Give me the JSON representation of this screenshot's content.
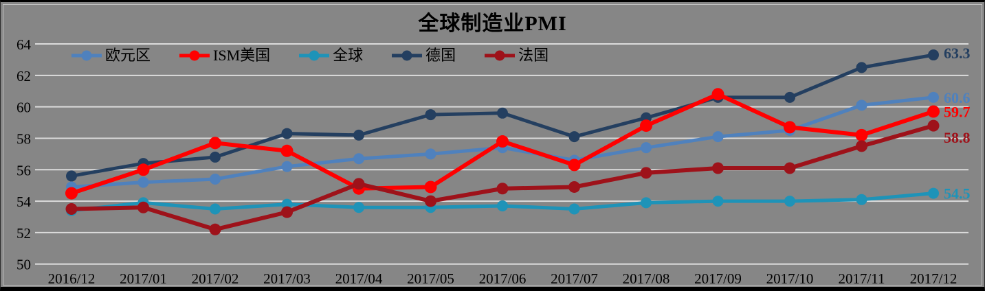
{
  "chart_data": {
    "type": "line",
    "title": "全球制造业PMI",
    "categories": [
      "2016/12",
      "2017/01",
      "2017/02",
      "2017/03",
      "2017/04",
      "2017/05",
      "2017/06",
      "2017/07",
      "2017/08",
      "2017/09",
      "2017/10",
      "2017/11",
      "2017/12"
    ],
    "series": [
      {
        "key": "eurozone",
        "name": "欧元区",
        "color": "#4F81BD",
        "z": 1,
        "line_width": 5,
        "marker_r": 8,
        "values": [
          54.9,
          55.2,
          55.4,
          56.2,
          56.7,
          57.0,
          57.4,
          56.6,
          57.4,
          58.1,
          58.5,
          60.1,
          60.6
        ],
        "end_label": "60.6"
      },
      {
        "key": "ism-us",
        "name": "ISM美国",
        "color": "#FF0000",
        "z": 4,
        "line_width": 6,
        "marker_r": 9,
        "values": [
          54.5,
          56.0,
          57.7,
          57.2,
          54.8,
          54.9,
          57.8,
          56.3,
          58.8,
          60.8,
          58.7,
          58.2,
          59.7
        ],
        "end_label": "59.7"
      },
      {
        "key": "global",
        "name": "全球",
        "color": "#1E93B8",
        "z": 2,
        "line_width": 5,
        "marker_r": 8,
        "values": [
          53.4,
          53.9,
          53.5,
          53.8,
          53.6,
          53.6,
          53.7,
          53.5,
          53.9,
          54.0,
          54.0,
          54.1,
          54.5
        ],
        "end_label": "54.5"
      },
      {
        "key": "germany",
        "name": "德国",
        "color": "#243F60",
        "z": 3,
        "line_width": 5,
        "marker_r": 8,
        "values": [
          55.6,
          56.4,
          56.8,
          58.3,
          58.2,
          59.5,
          59.6,
          58.1,
          59.3,
          60.6,
          60.6,
          62.5,
          63.3
        ],
        "end_label": "63.3"
      },
      {
        "key": "france",
        "name": "法国",
        "color": "#9E121A",
        "z": 5,
        "line_width": 6,
        "marker_r": 8.5,
        "values": [
          53.5,
          53.6,
          52.2,
          53.3,
          55.1,
          54.0,
          54.8,
          54.9,
          55.8,
          56.1,
          56.1,
          57.5,
          58.8
        ],
        "end_label": "58.8"
      }
    ],
    "ylim": [
      50,
      64
    ],
    "yticks": [
      50,
      52,
      54,
      56,
      58,
      60,
      62,
      64
    ],
    "grid": "horizontal",
    "legend_position": "top-left",
    "background": "#868686",
    "gridline_color": "#DCDCDC"
  }
}
